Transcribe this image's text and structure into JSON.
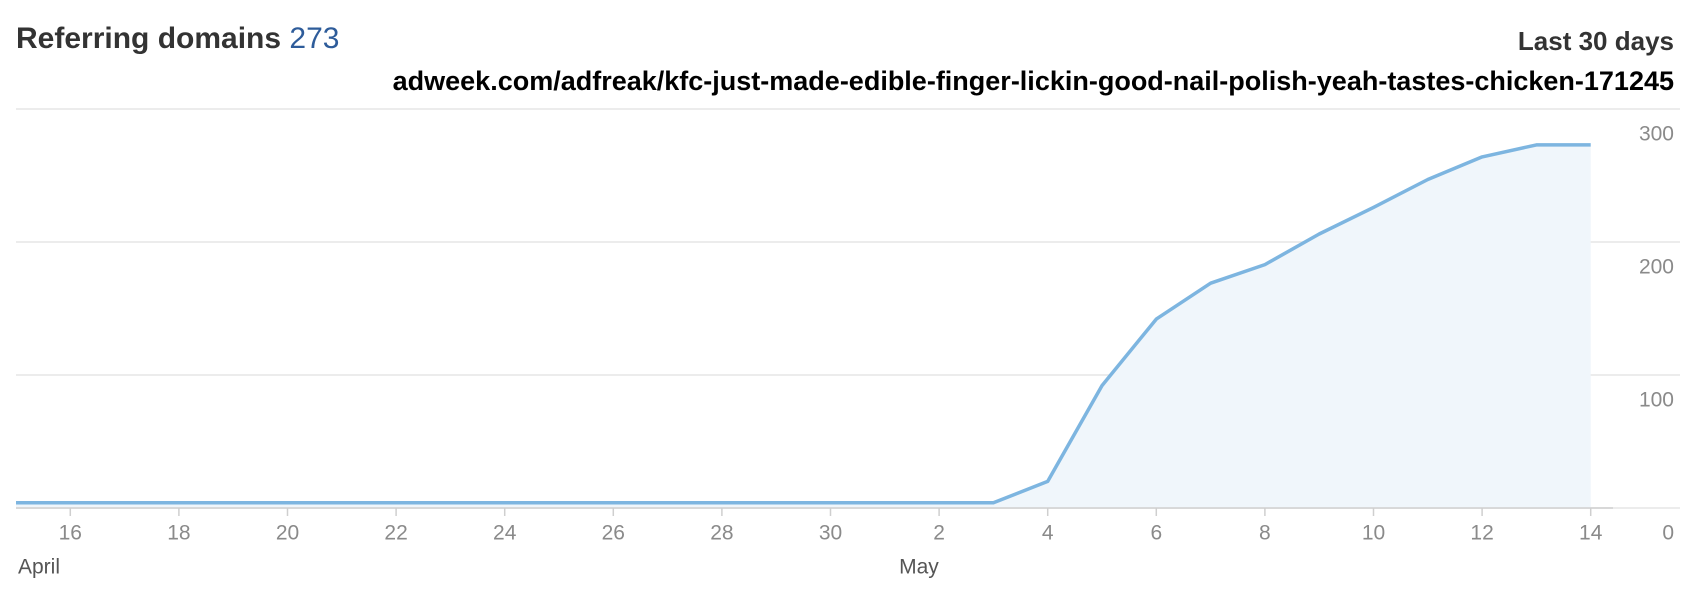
{
  "chart_data": {
    "type": "area",
    "title": "Referring domains",
    "count": 273,
    "subtitle": "Last 30 days",
    "url": "adweek.com/adfreak/kfc-just-made-edible-finger-lickin-good-nail-polish-yeah-tastes-chicken-171245",
    "categories": [
      null,
      "16",
      null,
      "18",
      null,
      "20",
      null,
      "22",
      null,
      "24",
      null,
      "26",
      null,
      "28",
      null,
      "30",
      null,
      "2",
      null,
      "4",
      null,
      "6",
      null,
      "8",
      null,
      "10",
      null,
      "12",
      null,
      "14"
    ],
    "month_labels": [
      "April",
      "May"
    ],
    "values": [
      4,
      4,
      4,
      4,
      4,
      4,
      4,
      4,
      4,
      4,
      4,
      4,
      4,
      4,
      4,
      4,
      4,
      4,
      4,
      20,
      92,
      142,
      169,
      183,
      206,
      226,
      247,
      264,
      273,
      273
    ],
    "color": "#7db5e0",
    "fill_color": "#f0f6fb",
    "ylim": [
      0,
      300
    ],
    "yticks": [
      0,
      100,
      200,
      300
    ],
    "grid": true
  }
}
